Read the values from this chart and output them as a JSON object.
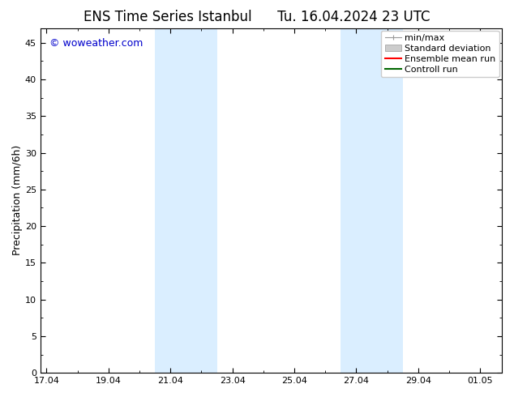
{
  "title_left": "ENS Time Series Istanbul",
  "title_right": "Tu. 16.04.2024 23 UTC",
  "ylabel": "Precipitation (mm/6h)",
  "ylim": [
    0,
    47
  ],
  "yticks": [
    0,
    5,
    10,
    15,
    20,
    25,
    30,
    35,
    40,
    45
  ],
  "xtick_labels": [
    "17.04",
    "19.04",
    "21.04",
    "23.04",
    "25.04",
    "27.04",
    "29.04",
    "01.05"
  ],
  "xtick_positions": [
    0,
    2,
    4,
    6,
    8,
    10,
    12,
    14
  ],
  "xlim": [
    -0.2,
    14.7
  ],
  "shaded_bands": [
    {
      "x_start": 3.5,
      "x_end": 5.5
    },
    {
      "x_start": 9.5,
      "x_end": 11.5
    }
  ],
  "shaded_color": "#daeeff",
  "background_color": "#ffffff",
  "watermark_text": "© woweather.com",
  "watermark_color": "#0000cc",
  "legend_entries": [
    {
      "label": "min/max",
      "type": "minmax"
    },
    {
      "label": "Standard deviation",
      "type": "stddev"
    },
    {
      "label": "Ensemble mean run",
      "type": "line",
      "color": "#ff0000"
    },
    {
      "label": "Controll run",
      "type": "line",
      "color": "#006600"
    }
  ],
  "title_fontsize": 12,
  "axis_label_fontsize": 9,
  "tick_fontsize": 8,
  "legend_fontsize": 8,
  "watermark_fontsize": 9
}
